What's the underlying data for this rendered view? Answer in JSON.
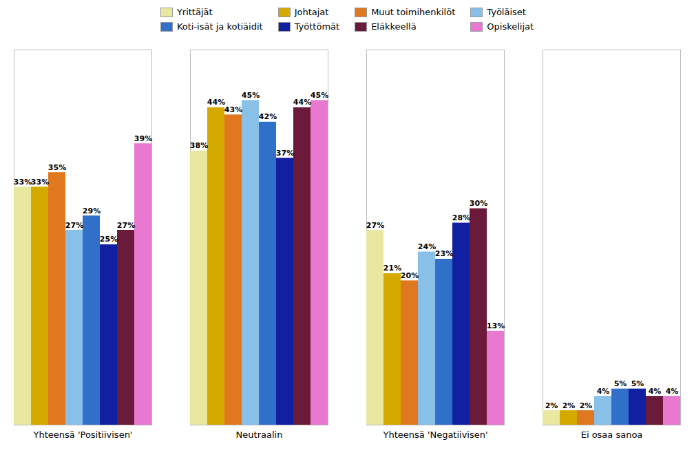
{
  "chart_data": {
    "type": "bar",
    "categories": [
      "Yhteensä 'Positiivisen'",
      "Neutraalin",
      "Yhteensä 'Negatiivisen'",
      "Ei osaa sanoa"
    ],
    "series": [
      {
        "name": "Yrittäjät",
        "color": "#e8e8a0",
        "values": [
          33,
          38,
          27,
          2
        ],
        "value_labels": [
          "33%",
          "38%",
          "27%",
          "2%"
        ]
      },
      {
        "name": "Johtajat",
        "color": "#d4aa00",
        "values": [
          33,
          44,
          21,
          2
        ],
        "value_labels": [
          "33%",
          "44%",
          "21%",
          "2%"
        ]
      },
      {
        "name": "Muut toimihenkilöt",
        "color": "#e07820",
        "values": [
          35,
          43,
          20,
          2
        ],
        "value_labels": [
          "35%",
          "43%",
          "20%",
          "2%"
        ]
      },
      {
        "name": "Työläiset",
        "color": "#88c0e8",
        "values": [
          27,
          45,
          24,
          4
        ],
        "value_labels": [
          "27%",
          "45%",
          "24%",
          "4%"
        ]
      },
      {
        "name": "Koti-isät ja kotiäidit",
        "color": "#3070c8",
        "values": [
          29,
          42,
          23,
          5
        ],
        "value_labels": [
          "29%",
          "42%",
          "23%",
          "5%"
        ]
      },
      {
        "name": "Työttömät",
        "color": "#1020a0",
        "values": [
          25,
          37,
          28,
          5
        ],
        "value_labels": [
          "25%",
          "37%",
          "28%",
          "5%"
        ]
      },
      {
        "name": "Eläkkeellä",
        "color": "#6b1a3a",
        "values": [
          27,
          44,
          30,
          4
        ],
        "value_labels": [
          "27%",
          "44%",
          "30%",
          "4%"
        ]
      },
      {
        "name": "Opiskelijat",
        "color": "#e878d0",
        "values": [
          39,
          45,
          13,
          4
        ],
        "value_labels": [
          "39%",
          "45%",
          "13%",
          "4%"
        ]
      }
    ],
    "ylim": [
      0,
      52
    ],
    "grid": false,
    "legend": "top",
    "data_labels": true,
    "tick_labels": "x"
  }
}
